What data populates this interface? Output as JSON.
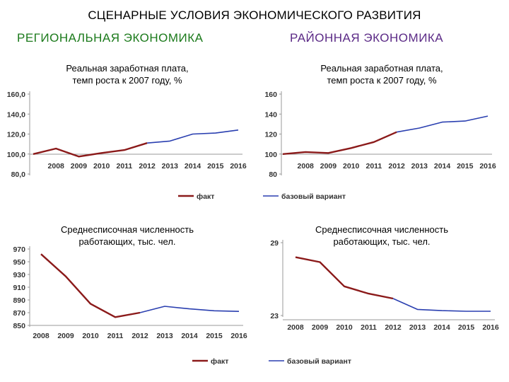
{
  "page": {
    "title": "СЦЕНАРНЫЕ УСЛОВИЯ ЭКОНОМИЧЕСКОГО РАЗВИТИЯ",
    "left_heading": "РЕГИОНАЛЬНАЯ ЭКОНОМИКА",
    "right_heading": "РАЙОННАЯ ЭКОНОМИКА"
  },
  "colors": {
    "fact": "#8b1a1a",
    "base": "#2a3fb0",
    "axis": "#999999",
    "left_heading": "#1b7a1b",
    "right_heading": "#5b2a86"
  },
  "chart_data": [
    {
      "id": "reg-wage",
      "type": "line",
      "title_lines": [
        "Реальная заработная плата,",
        "темп роста к 2007 году, %"
      ],
      "x": [
        "",
        "2008",
        "2009",
        "2010",
        "2011",
        "2012",
        "2013",
        "2014",
        "2015",
        "2016"
      ],
      "yticks": [
        "80,0",
        "100,0",
        "120,0",
        "140,0",
        "160,0"
      ],
      "ylim": [
        80,
        160
      ],
      "series": [
        {
          "key": "fact",
          "values": [
            100,
            105.5,
            97.5,
            101,
            104,
            111,
            null,
            null,
            null,
            null
          ]
        },
        {
          "key": "base",
          "values": [
            null,
            null,
            null,
            null,
            null,
            111,
            113,
            120,
            121,
            124
          ]
        }
      ],
      "legend": [
        {
          "key": "fact",
          "label": "факт"
        }
      ]
    },
    {
      "id": "dist-wage",
      "type": "line",
      "title_lines": [
        "Реальная заработная плата,",
        "темп роста к 2007 году, %"
      ],
      "x": [
        "",
        "2008",
        "2009",
        "2010",
        "2011",
        "2012",
        "2013",
        "2014",
        "2015",
        "2016"
      ],
      "yticks": [
        "80",
        "100",
        "120",
        "140",
        "160"
      ],
      "ylim": [
        80,
        160
      ],
      "series": [
        {
          "key": "fact",
          "values": [
            100,
            102,
            101,
            106,
            112,
            122,
            null,
            null,
            null,
            null
          ]
        },
        {
          "key": "base",
          "values": [
            null,
            null,
            null,
            null,
            null,
            122,
            126,
            132,
            133,
            138
          ]
        }
      ],
      "legend": [
        {
          "key": "base",
          "label": "базовый вариант"
        }
      ]
    },
    {
      "id": "reg-emp",
      "type": "line",
      "title_lines": [
        "Среднесписочная численность",
        "работающих, тыс. чел."
      ],
      "x": [
        "2008",
        "2009",
        "2010",
        "2011",
        "2012",
        "2013",
        "2014",
        "2015",
        "2016"
      ],
      "yticks": [
        "850",
        "870",
        "890",
        "910",
        "930",
        "950",
        "970"
      ],
      "ylim": [
        850,
        970
      ],
      "series": [
        {
          "key": "fact",
          "values": [
            962,
            927,
            884,
            863,
            870,
            null,
            null,
            null,
            null
          ]
        },
        {
          "key": "base",
          "values": [
            null,
            null,
            null,
            null,
            870,
            880,
            876,
            873,
            872
          ]
        }
      ],
      "legend": [
        {
          "key": "fact",
          "label": "факт"
        },
        {
          "key": "base",
          "label": "базовый вариант"
        }
      ]
    },
    {
      "id": "dist-emp",
      "type": "line",
      "title_lines": [
        "Среднесписочная численность",
        "работающих, тыс. чел."
      ],
      "x": [
        "2008",
        "2009",
        "2010",
        "2011",
        "2012",
        "2013",
        "2014",
        "2015",
        "2016"
      ],
      "yticks": [
        "23",
        "29"
      ],
      "ylim": [
        23,
        29
      ],
      "series": [
        {
          "key": "fact",
          "values": [
            27.8,
            27.4,
            25.4,
            24.8,
            24.4,
            null,
            null,
            null,
            null
          ]
        },
        {
          "key": "base",
          "values": [
            null,
            null,
            null,
            null,
            24.4,
            23.5,
            23.4,
            23.35,
            23.35
          ]
        }
      ],
      "legend": []
    }
  ]
}
